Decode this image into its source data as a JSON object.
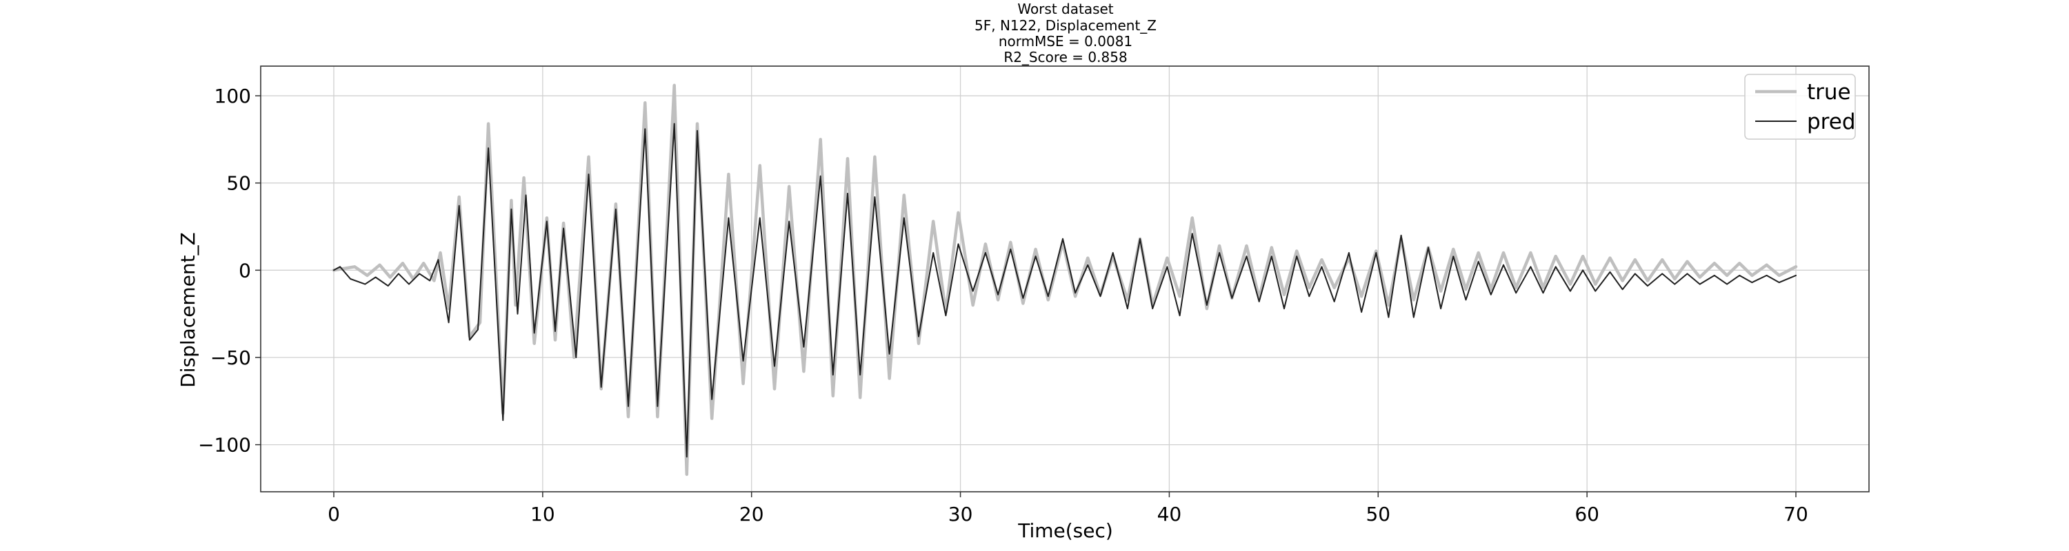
{
  "chart_data": {
    "type": "line",
    "title": [
      "Worst dataset",
      "5F, N122, Displacement_Z",
      "normMSE = 0.0081",
      "R2_Score = 0.858"
    ],
    "xlabel": "Time(sec)",
    "ylabel": "Displacement_Z",
    "xlim": [
      -3.5,
      73.5
    ],
    "ylim": [
      -127,
      117
    ],
    "xticks": [
      0,
      10,
      20,
      30,
      40,
      50,
      60,
      70
    ],
    "yticks": [
      -100,
      -50,
      0,
      50,
      100
    ],
    "xtick_labels": [
      "0",
      "10",
      "20",
      "30",
      "40",
      "50",
      "60",
      "70"
    ],
    "ytick_labels": [
      "−100",
      "−50",
      "0",
      "50",
      "100"
    ],
    "grid": true,
    "legend": "top-right",
    "series_note": "peak (t, value) pairs estimated from the plot; linearly connected",
    "series": [
      {
        "name": "true",
        "color": "#bfbfbf",
        "points": [
          [
            0,
            0
          ],
          [
            1.0,
            2
          ],
          [
            1.6,
            -3
          ],
          [
            2.2,
            3
          ],
          [
            2.7,
            -4
          ],
          [
            3.3,
            4
          ],
          [
            3.8,
            -5
          ],
          [
            4.3,
            4
          ],
          [
            4.8,
            -6
          ],
          [
            5.1,
            10
          ],
          [
            5.5,
            -22
          ],
          [
            6.0,
            42
          ],
          [
            6.5,
            -38
          ],
          [
            7.0,
            -30
          ],
          [
            7.4,
            84
          ],
          [
            8.1,
            -82
          ],
          [
            8.5,
            40
          ],
          [
            8.7,
            -20
          ],
          [
            9.1,
            53
          ],
          [
            9.6,
            -42
          ],
          [
            10.2,
            30
          ],
          [
            10.6,
            -40
          ],
          [
            11.0,
            27
          ],
          [
            11.5,
            -50
          ],
          [
            12.2,
            65
          ],
          [
            12.8,
            -68
          ],
          [
            13.5,
            38
          ],
          [
            14.1,
            -84
          ],
          [
            14.9,
            96
          ],
          [
            15.5,
            -84
          ],
          [
            16.3,
            106
          ],
          [
            16.9,
            -117
          ],
          [
            17.4,
            84
          ],
          [
            18.1,
            -85
          ],
          [
            18.9,
            55
          ],
          [
            19.6,
            -65
          ],
          [
            20.4,
            60
          ],
          [
            21.1,
            -68
          ],
          [
            21.8,
            48
          ],
          [
            22.5,
            -58
          ],
          [
            23.3,
            75
          ],
          [
            23.9,
            -72
          ],
          [
            24.6,
            64
          ],
          [
            25.2,
            -73
          ],
          [
            25.9,
            65
          ],
          [
            26.6,
            -62
          ],
          [
            27.3,
            43
          ],
          [
            28.0,
            -42
          ],
          [
            28.7,
            28
          ],
          [
            29.3,
            -24
          ],
          [
            29.9,
            33
          ],
          [
            30.6,
            -20
          ],
          [
            31.2,
            15
          ],
          [
            31.8,
            -17
          ],
          [
            32.4,
            16
          ],
          [
            33.0,
            -19
          ],
          [
            33.6,
            12
          ],
          [
            34.2,
            -17
          ],
          [
            34.9,
            16
          ],
          [
            35.5,
            -15
          ],
          [
            36.1,
            7
          ],
          [
            36.7,
            -14
          ],
          [
            37.3,
            8
          ],
          [
            38.0,
            -17
          ],
          [
            38.6,
            18
          ],
          [
            39.2,
            -20
          ],
          [
            39.9,
            7
          ],
          [
            40.5,
            -15
          ],
          [
            41.1,
            30
          ],
          [
            41.8,
            -22
          ],
          [
            42.4,
            14
          ],
          [
            43.0,
            -16
          ],
          [
            43.7,
            14
          ],
          [
            44.3,
            -16
          ],
          [
            44.9,
            13
          ],
          [
            45.5,
            -14
          ],
          [
            46.1,
            11
          ],
          [
            46.7,
            -10
          ],
          [
            47.3,
            6
          ],
          [
            47.9,
            -10
          ],
          [
            48.6,
            7
          ],
          [
            49.2,
            -15
          ],
          [
            49.9,
            11
          ],
          [
            50.5,
            -20
          ],
          [
            51.1,
            18
          ],
          [
            51.7,
            -17
          ],
          [
            52.4,
            13
          ],
          [
            53.0,
            -12
          ],
          [
            53.6,
            12
          ],
          [
            54.2,
            -11
          ],
          [
            54.8,
            10
          ],
          [
            55.4,
            -11
          ],
          [
            56.0,
            10
          ],
          [
            56.6,
            -10
          ],
          [
            57.3,
            10
          ],
          [
            57.9,
            -10
          ],
          [
            58.5,
            8
          ],
          [
            59.2,
            -8
          ],
          [
            59.8,
            8
          ],
          [
            60.4,
            -8
          ],
          [
            61.1,
            7
          ],
          [
            61.7,
            -6
          ],
          [
            62.3,
            6
          ],
          [
            62.9,
            -6
          ],
          [
            63.6,
            6
          ],
          [
            64.2,
            -5
          ],
          [
            64.8,
            5
          ],
          [
            65.4,
            -4
          ],
          [
            66.1,
            4
          ],
          [
            66.7,
            -3
          ],
          [
            67.3,
            4
          ],
          [
            67.9,
            -3
          ],
          [
            68.6,
            3
          ],
          [
            69.2,
            -3
          ],
          [
            70.0,
            2
          ]
        ]
      },
      {
        "name": "pred",
        "color": "#1f1f1f",
        "points": [
          [
            0,
            0
          ],
          [
            0.3,
            2
          ],
          [
            0.8,
            -5
          ],
          [
            1.5,
            -8
          ],
          [
            2.0,
            -4
          ],
          [
            2.6,
            -9
          ],
          [
            3.1,
            -2
          ],
          [
            3.6,
            -8
          ],
          [
            4.1,
            -2
          ],
          [
            4.6,
            -6
          ],
          [
            5.0,
            6
          ],
          [
            5.5,
            -30
          ],
          [
            6.0,
            37
          ],
          [
            6.5,
            -40
          ],
          [
            6.9,
            -34
          ],
          [
            7.4,
            70
          ],
          [
            8.1,
            -86
          ],
          [
            8.5,
            35
          ],
          [
            8.8,
            -25
          ],
          [
            9.2,
            43
          ],
          [
            9.6,
            -36
          ],
          [
            10.2,
            28
          ],
          [
            10.6,
            -35
          ],
          [
            11.0,
            24
          ],
          [
            11.6,
            -50
          ],
          [
            12.2,
            55
          ],
          [
            12.8,
            -67
          ],
          [
            13.5,
            35
          ],
          [
            14.1,
            -78
          ],
          [
            14.9,
            81
          ],
          [
            15.5,
            -78
          ],
          [
            16.3,
            84
          ],
          [
            16.9,
            -107
          ],
          [
            17.4,
            80
          ],
          [
            18.1,
            -74
          ],
          [
            18.9,
            30
          ],
          [
            19.6,
            -52
          ],
          [
            20.4,
            30
          ],
          [
            21.1,
            -55
          ],
          [
            21.8,
            28
          ],
          [
            22.5,
            -44
          ],
          [
            23.3,
            54
          ],
          [
            23.9,
            -60
          ],
          [
            24.6,
            44
          ],
          [
            25.2,
            -60
          ],
          [
            25.9,
            42
          ],
          [
            26.6,
            -48
          ],
          [
            27.3,
            30
          ],
          [
            28.0,
            -38
          ],
          [
            28.7,
            10
          ],
          [
            29.3,
            -26
          ],
          [
            29.9,
            15
          ],
          [
            30.6,
            -12
          ],
          [
            31.2,
            10
          ],
          [
            31.8,
            -14
          ],
          [
            32.4,
            12
          ],
          [
            33.0,
            -16
          ],
          [
            33.6,
            8
          ],
          [
            34.2,
            -15
          ],
          [
            34.9,
            18
          ],
          [
            35.5,
            -13
          ],
          [
            36.1,
            3
          ],
          [
            36.7,
            -15
          ],
          [
            37.3,
            10
          ],
          [
            38.0,
            -22
          ],
          [
            38.6,
            18
          ],
          [
            39.2,
            -22
          ],
          [
            39.9,
            2
          ],
          [
            40.5,
            -26
          ],
          [
            41.1,
            21
          ],
          [
            41.8,
            -20
          ],
          [
            42.4,
            10
          ],
          [
            43.0,
            -16
          ],
          [
            43.7,
            8
          ],
          [
            44.3,
            -18
          ],
          [
            44.9,
            8
          ],
          [
            45.5,
            -22
          ],
          [
            46.1,
            8
          ],
          [
            46.7,
            -15
          ],
          [
            47.3,
            2
          ],
          [
            47.9,
            -18
          ],
          [
            48.6,
            10
          ],
          [
            49.2,
            -24
          ],
          [
            49.9,
            10
          ],
          [
            50.5,
            -27
          ],
          [
            51.1,
            20
          ],
          [
            51.7,
            -27
          ],
          [
            52.4,
            13
          ],
          [
            53.0,
            -22
          ],
          [
            53.6,
            8
          ],
          [
            54.2,
            -17
          ],
          [
            54.8,
            5
          ],
          [
            55.4,
            -14
          ],
          [
            56.0,
            3
          ],
          [
            56.6,
            -13
          ],
          [
            57.3,
            2
          ],
          [
            57.9,
            -13
          ],
          [
            58.5,
            2
          ],
          [
            59.2,
            -12
          ],
          [
            59.8,
            0
          ],
          [
            60.4,
            -12
          ],
          [
            61.1,
            -1
          ],
          [
            61.7,
            -11
          ],
          [
            62.3,
            -2
          ],
          [
            62.9,
            -9
          ],
          [
            63.6,
            -2
          ],
          [
            64.2,
            -8
          ],
          [
            64.8,
            -2
          ],
          [
            65.4,
            -8
          ],
          [
            66.1,
            -3
          ],
          [
            66.7,
            -8
          ],
          [
            67.3,
            -3
          ],
          [
            67.9,
            -7
          ],
          [
            68.6,
            -3
          ],
          [
            69.2,
            -7
          ],
          [
            70.0,
            -3
          ]
        ]
      }
    ]
  }
}
